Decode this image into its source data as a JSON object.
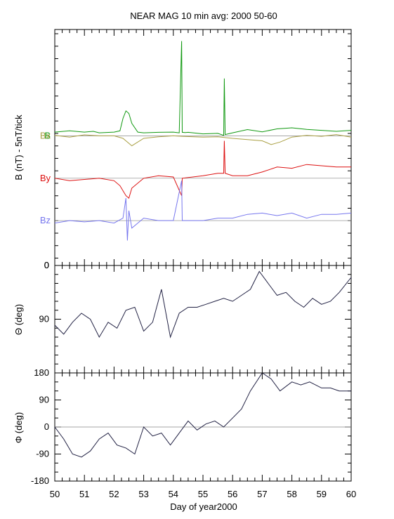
{
  "chart_data": [
    {
      "panel": "B-components",
      "type": "line",
      "title": "NEAR MAG 10 min avg: 2000 50-60",
      "ylabel": "B  (nT) - 5nT/tick",
      "xlim": [
        50,
        60
      ],
      "units_per_tick": 5,
      "series": [
        {
          "name": "B",
          "color": "#119911",
          "baseline": 12,
          "x": [
            50,
            50.5,
            51,
            51.3,
            51.5,
            52,
            52.2,
            52.3,
            52.4,
            52.5,
            52.6,
            52.8,
            53,
            53.5,
            54,
            54.2,
            54.28,
            54.3,
            54.4,
            54.5,
            55,
            55.5,
            55.7,
            55.72,
            55.75,
            56,
            56.5,
            57,
            57.5,
            58,
            58.5,
            59,
            59.5,
            60
          ],
          "y": [
            13.5,
            14,
            13.5,
            13.8,
            13.2,
            13.5,
            14,
            19,
            22,
            21,
            17,
            13.5,
            13.2,
            13.4,
            13.5,
            13.2,
            50,
            13.4,
            13.3,
            13.4,
            12.8,
            13,
            12.2,
            35,
            12.5,
            13.2,
            14.5,
            13.6,
            14.8,
            15.2,
            14.6,
            14.2,
            13.8,
            14.2
          ]
        },
        {
          "name": "Bx",
          "color": "#aaa044",
          "baseline": 12,
          "x": [
            50,
            50.5,
            51,
            51.5,
            52,
            52.3,
            52.6,
            53,
            53.5,
            54,
            54.3,
            55,
            55.5,
            56,
            56.5,
            57,
            57.3,
            57.6,
            58,
            58.5,
            59,
            59.5,
            60
          ],
          "y": [
            12.2,
            11.5,
            12.4,
            12,
            12,
            11,
            8,
            11,
            11.6,
            12,
            11.8,
            11.5,
            11.6,
            11,
            10.5,
            10,
            8.5,
            9.5,
            11.5,
            12.2,
            11.8,
            12.5,
            11.5
          ]
        },
        {
          "name": "By",
          "color": "#dd1111",
          "baseline": -5,
          "x": [
            50,
            50.5,
            51,
            51.5,
            52,
            52.2,
            52.4,
            52.5,
            52.6,
            53,
            53.5,
            54,
            54.28,
            54.3,
            55,
            55.5,
            55.7,
            55.72,
            55.75,
            56,
            56.5,
            57,
            57.5,
            58,
            58.5,
            59,
            59.5,
            60
          ],
          "y": [
            -5,
            -6,
            -5.5,
            -5,
            -6,
            -8,
            -12,
            -13,
            -9,
            -5,
            -4,
            -4.5,
            -12,
            -5,
            -4,
            -3,
            -3,
            10,
            -3,
            -4,
            -4,
            -2.5,
            -0.5,
            -1,
            0.5,
            0,
            -0.5,
            -0.5
          ]
        },
        {
          "name": "Bz",
          "color": "#7777ee",
          "baseline": -22,
          "x": [
            50,
            50.5,
            51,
            51.5,
            52,
            52.3,
            52.4,
            52.45,
            52.5,
            52.6,
            53,
            53.5,
            54,
            54.28,
            54.3,
            55,
            55.5,
            56,
            56.5,
            57,
            57.5,
            58,
            58.5,
            59,
            59.5,
            60
          ],
          "y": [
            -23,
            -22,
            -22.5,
            -22,
            -23,
            -21,
            -13,
            -30,
            -18,
            -25,
            -21,
            -22,
            -22,
            -6,
            -22,
            -22,
            -21,
            -21,
            -19.5,
            -19,
            -20,
            -19,
            -21,
            -19.5,
            -19.5,
            -19
          ]
        }
      ]
    },
    {
      "panel": "theta",
      "type": "line",
      "ylabel": "Θ (deg)",
      "ylim": [
        180,
        0
      ],
      "yticks": [
        "0",
        "90"
      ],
      "series": [
        {
          "color": "#222244",
          "x": [
            50,
            50.3,
            50.6,
            50.9,
            51.2,
            51.5,
            51.8,
            52.1,
            52.4,
            52.7,
            53,
            53.3,
            53.6,
            53.9,
            54.2,
            54.5,
            54.8,
            55.1,
            55.4,
            55.7,
            56,
            56.3,
            56.6,
            56.9,
            57.2,
            57.5,
            57.8,
            58.1,
            58.4,
            58.7,
            59,
            59.3,
            59.6,
            60
          ],
          "y": [
            100,
            115,
            95,
            80,
            90,
            120,
            95,
            105,
            75,
            70,
            110,
            95,
            40,
            120,
            80,
            70,
            70,
            65,
            60,
            55,
            60,
            50,
            40,
            10,
            30,
            50,
            45,
            60,
            70,
            55,
            65,
            60,
            45,
            20
          ]
        }
      ]
    },
    {
      "panel": "phi",
      "type": "line",
      "ylabel": "Φ (deg)",
      "xlabel": "Day of year2000",
      "ylim": [
        -180,
        180
      ],
      "yticks": [
        "180",
        "90",
        "0",
        "-90",
        "-180"
      ],
      "xticks": [
        "50",
        "51",
        "52",
        "53",
        "54",
        "55",
        "56",
        "57",
        "58",
        "59",
        "60"
      ],
      "series": [
        {
          "color": "#222244",
          "x": [
            50,
            50.3,
            50.6,
            50.9,
            51.2,
            51.5,
            51.8,
            52.1,
            52.4,
            52.7,
            53,
            53.3,
            53.6,
            53.9,
            54.2,
            54.5,
            54.8,
            55.1,
            55.4,
            55.7,
            56,
            56.3,
            56.6,
            57,
            57.3,
            57.6,
            58,
            58.3,
            58.6,
            59,
            59.3,
            59.6,
            60
          ],
          "y": [
            0,
            -40,
            -90,
            -100,
            -80,
            -40,
            -20,
            -60,
            -70,
            -90,
            0,
            -30,
            -20,
            -60,
            -20,
            20,
            -10,
            10,
            20,
            0,
            30,
            60,
            120,
            180,
            160,
            120,
            150,
            140,
            150,
            130,
            130,
            120,
            120
          ]
        }
      ]
    }
  ]
}
